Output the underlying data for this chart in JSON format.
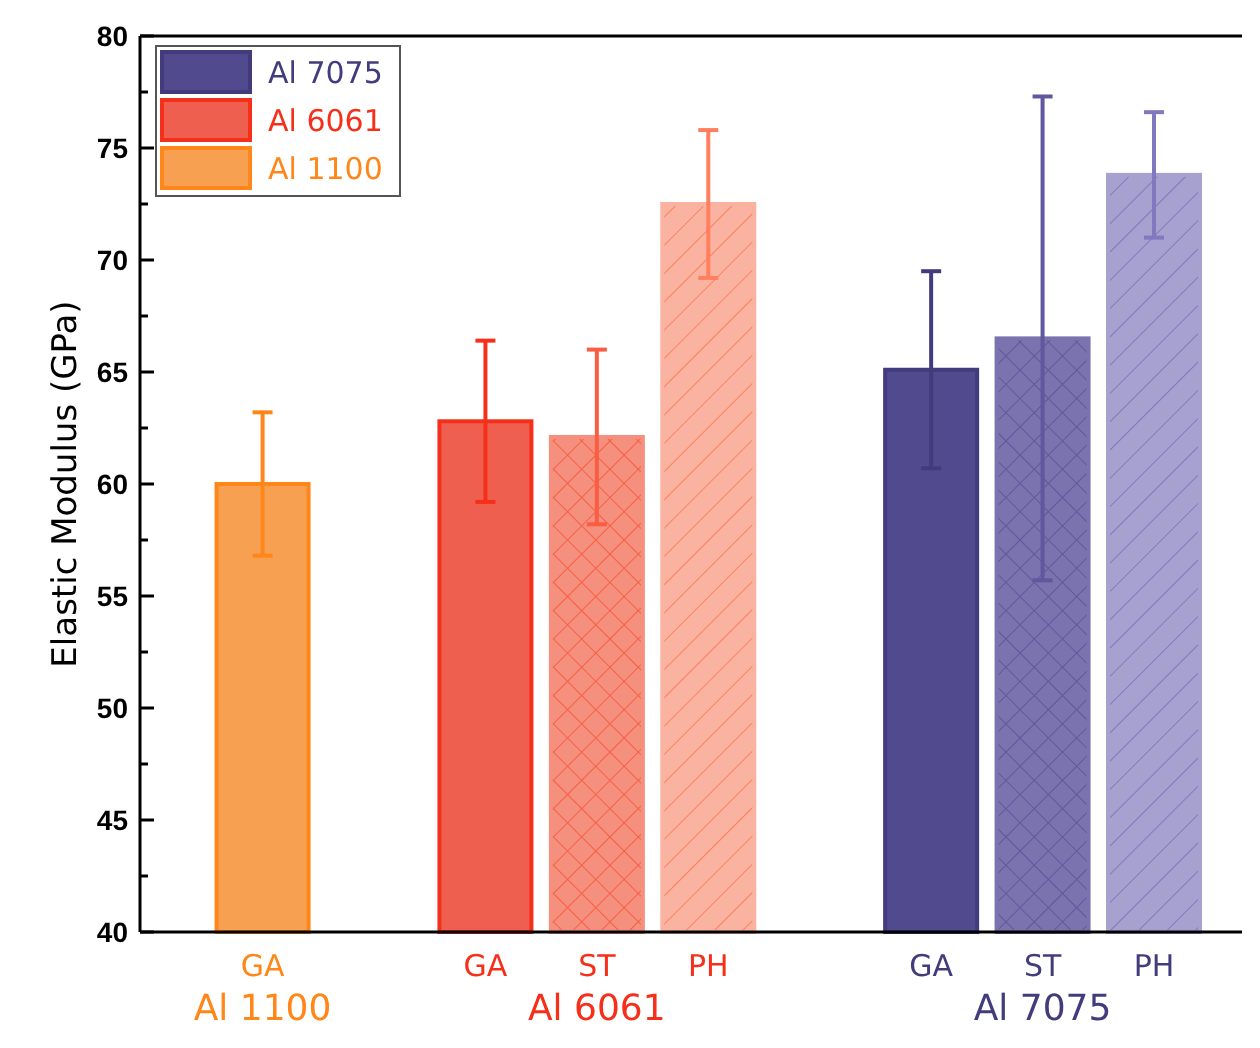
{
  "chart_data": {
    "type": "bar",
    "ylabel": "Elastic Modulus (GPa)",
    "categories": [
      "GA",
      null,
      "GA",
      "ST",
      "PH",
      null,
      "GA",
      "ST",
      "PH"
    ],
    "series": [
      {
        "name": "Al 7075",
        "color": "#524a8e",
        "colors": [
          null,
          null,
          null,
          null,
          null,
          null,
          "#524a8e",
          "#7a73ad",
          "#a6a1cf"
        ],
        "values": [
          null,
          null,
          null,
          null,
          null,
          null,
          65.1,
          66.5,
          73.8
        ],
        "errors": [
          null,
          null,
          null,
          null,
          null,
          null,
          [
            60.7,
            69.5
          ],
          [
            55.7,
            77.3
          ],
          [
            71.0,
            76.6
          ]
        ]
      },
      {
        "name": "Al 6061",
        "color": "#ef5f50",
        "colors": [
          null,
          null,
          "#ef5f50",
          "#f5907e",
          "#fbb3a1",
          null,
          null,
          null,
          null
        ],
        "values": [
          null,
          null,
          62.8,
          62.1,
          72.5,
          null,
          null,
          null,
          null
        ],
        "errors": [
          null,
          null,
          [
            59.2,
            66.4
          ],
          [
            58.2,
            66.0
          ],
          [
            69.2,
            75.8
          ],
          null,
          null,
          null,
          null
        ]
      },
      {
        "name": "Al 1100",
        "color": "#f7a052",
        "colors": [
          "#f7a052",
          null,
          null,
          null,
          null,
          null,
          null,
          null,
          null
        ],
        "values": [
          60.0,
          null,
          null,
          null,
          null,
          null,
          null,
          null,
          null
        ],
        "errors": [
          [
            56.8,
            63.2
          ],
          null,
          null,
          null,
          null,
          null,
          null,
          null,
          null
        ]
      }
    ],
    "annotations": [
      "Al 1100",
      "Al 6061",
      "Al 7075"
    ],
    "ylim": [
      40,
      80
    ],
    "yticks": [
      40,
      {
        "value": 42.5,
        "label": null
      },
      45,
      {
        "value": 47.5,
        "label": null
      },
      50,
      {
        "value": 52.5,
        "label": null
      },
      55,
      {
        "value": 57.5,
        "label": null
      },
      60,
      {
        "value": 62.5,
        "label": null
      },
      65,
      {
        "value": 67.5,
        "label": null
      },
      70,
      {
        "value": 72.5,
        "label": null
      },
      75,
      {
        "value": 77.5,
        "label": null
      },
      80
    ],
    "legend": "top left"
  }
}
